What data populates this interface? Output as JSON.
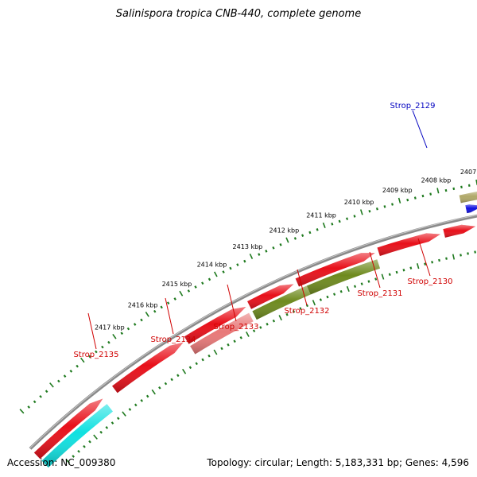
{
  "title": "Salinispora tropica CNB-440, complete genome",
  "footer": {
    "accession": "Accession: NC_009380",
    "summary": "Topology: circular; Length: 5,183,331 bp; Genes: 4,596"
  },
  "colors": {
    "backbone": "#8a8a8a",
    "tick": "#1f7a1f",
    "red_gene": "#e8101a",
    "pink_gene": "#e87878",
    "olive_gene": "#6e8a1e",
    "khaki_gene": "#b0a868",
    "blue_gene": "#1010e0",
    "cyan_gene": "#10e0e0",
    "label_red": "#d00000",
    "label_blue": "#0000c0"
  },
  "scale": {
    "unit": "kbp",
    "labels": [
      "2407 kbp",
      "2408 kbp",
      "2409 kbp",
      "2410 kbp",
      "2411 kbp",
      "2412 kbp",
      "2413 kbp",
      "2414 kbp",
      "2415 kbp",
      "2416 kbp",
      "2417 kbp"
    ]
  },
  "genes": [
    {
      "label": "Strop_2129",
      "ring": "outer",
      "color": "blue_gene"
    },
    {
      "label": "",
      "ring": "mid",
      "color": "khaki_gene"
    },
    {
      "label": "",
      "ring": "outer",
      "color": "blue_gene"
    },
    {
      "label": "Strop_2130",
      "ring": "inner",
      "color": "red_gene"
    },
    {
      "label": "Strop_2131",
      "ring": "inner",
      "color": "red_gene"
    },
    {
      "label": "Strop_2132",
      "ring": "inner",
      "color": "red_gene"
    },
    {
      "label": "Strop_2132",
      "ring": "inner2",
      "color": "olive_gene"
    },
    {
      "label": "Strop_2133",
      "ring": "inner",
      "color": "red_gene"
    },
    {
      "label": "Strop_2133",
      "ring": "inner2",
      "color": "olive_gene"
    },
    {
      "label": "Strop_2134",
      "ring": "inner",
      "color": "red_gene"
    },
    {
      "label": "Strop_2134",
      "ring": "inner2",
      "color": "pink_gene"
    },
    {
      "label": "Strop_2135",
      "ring": "inner",
      "color": "red_gene"
    },
    {
      "label": "",
      "ring": "inner",
      "color": "red_gene"
    },
    {
      "label": "",
      "ring": "inner2",
      "color": "cyan_gene"
    }
  ],
  "gene_labels": [
    {
      "text": "Strop_2129",
      "color": "label_blue"
    },
    {
      "text": "Strop_2130",
      "color": "label_red"
    },
    {
      "text": "Strop_2131",
      "color": "label_red"
    },
    {
      "text": "Strop_2132",
      "color": "label_red"
    },
    {
      "text": "Strop_2133",
      "color": "label_red"
    },
    {
      "text": "Strop_2134",
      "color": "label_red"
    },
    {
      "text": "Strop_2135",
      "color": "label_red"
    }
  ]
}
